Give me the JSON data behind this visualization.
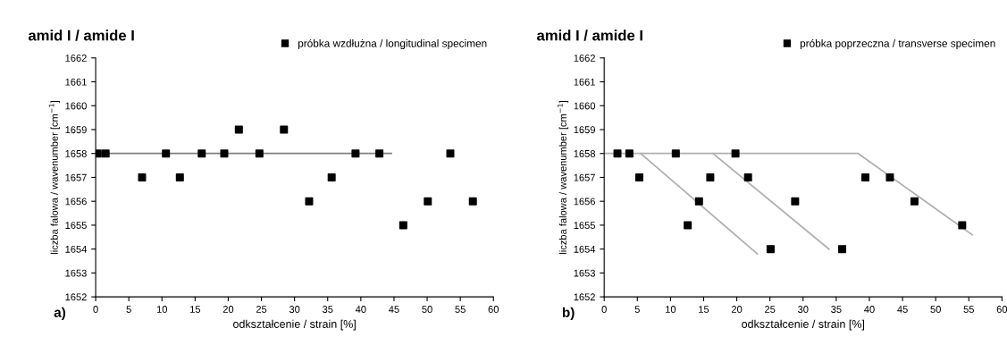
{
  "chart_data": [
    {
      "type": "scatter",
      "title": "amid I / amide I",
      "xlabel": "odkształcenie / strain [%]",
      "ylabel": "liczba falowa / wavenumber [cm$^{−1}$]",
      "xlim": [
        0,
        60
      ],
      "xticks": [
        0,
        5,
        10,
        15,
        20,
        25,
        30,
        35,
        40,
        45,
        50,
        55,
        60
      ],
      "ylim": [
        1652,
        1662
      ],
      "yticks": [
        1652,
        1653,
        1654,
        1655,
        1656,
        1657,
        1658,
        1659,
        1660,
        1661,
        1662
      ],
      "legend": "top right",
      "grid": false,
      "annotations": [
        "a)"
      ],
      "series": [
        {
          "name": "próbka wzdłużna / longitudinal specimen",
          "marker": "square",
          "color": "#000000",
          "x": [
            0.3,
            1.5,
            7,
            10.6,
            12.7,
            16,
            19.4,
            21.6,
            24.7,
            28.4,
            32.2,
            35.6,
            39.2,
            42.8,
            46.4,
            50.1,
            53.5,
            56.9
          ],
          "values": [
            1658,
            1658,
            1657,
            1658,
            1657,
            1658,
            1658,
            1659,
            1658,
            1659,
            1656,
            1657,
            1658,
            1658,
            1655,
            1656,
            1658,
            1656
          ]
        },
        {
          "type": "line",
          "color": "#808080",
          "x": [
            0,
            44.6
          ],
          "values": [
            1658,
            1658
          ]
        }
      ]
    },
    {
      "type": "scatter",
      "title": "amid I / amide I",
      "xlabel": "odkształcenie / strain [%]",
      "ylabel": "liczba falowa / wavenumber [cm$^{−1}$]",
      "xlim": [
        0,
        60
      ],
      "xticks": [
        0,
        5,
        10,
        15,
        20,
        25,
        30,
        35,
        40,
        45,
        50,
        55,
        60
      ],
      "ylim": [
        1652,
        1662
      ],
      "yticks": [
        1652,
        1653,
        1654,
        1655,
        1656,
        1657,
        1658,
        1659,
        1660,
        1661,
        1662
      ],
      "legend": "top right",
      "grid": false,
      "annotations": [
        "b)"
      ],
      "series": [
        {
          "name": "próbka poprzeczna / transverse specimen",
          "marker": "square",
          "color": "#000000",
          "x": [
            2.0,
            3.8,
            10.8,
            19.8,
            5.3,
            16.0,
            21.7,
            39.4,
            43.1,
            14.3,
            28.8,
            46.8,
            12.6,
            54.0,
            25.1,
            35.9
          ],
          "values": [
            1658,
            1658,
            1658,
            1658,
            1657,
            1657,
            1657,
            1657,
            1657,
            1656,
            1656,
            1656,
            1655,
            1655,
            1654,
            1654
          ]
        },
        {
          "type": "line",
          "color": "#b0b0b0",
          "x": [
            0,
            38.3,
            55.5
          ],
          "values": [
            1658,
            1658,
            1654.6
          ]
        },
        {
          "type": "line",
          "color": "#b0b0b0",
          "x": [
            5.5,
            23.1
          ],
          "values": [
            1658,
            1653.8
          ]
        },
        {
          "type": "line",
          "color": "#b0b0b0",
          "x": [
            16.4,
            33.9
          ],
          "values": [
            1658,
            1654.0
          ]
        }
      ]
    }
  ]
}
